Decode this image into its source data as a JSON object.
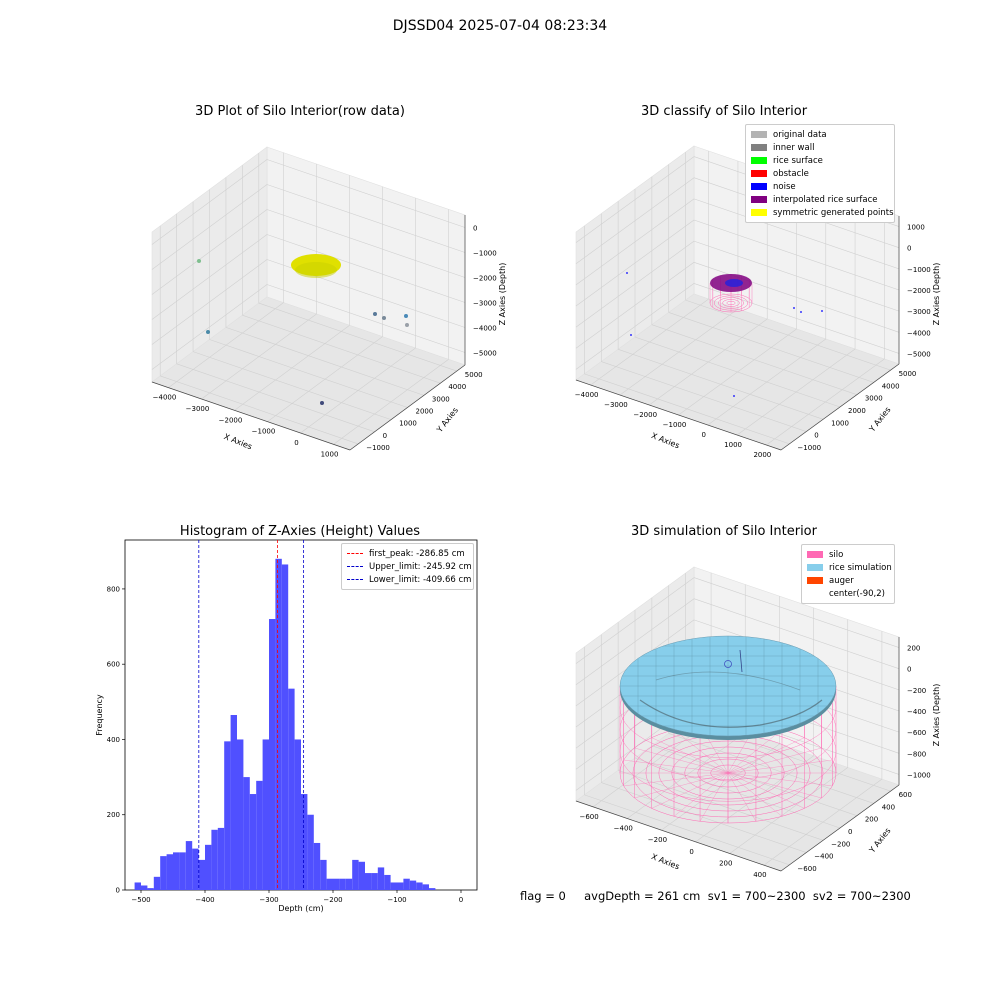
{
  "suptitle": "DJSSD04 2025-07-04 08:23:34",
  "footer": "flag = 0     avgDepth = 261 cm  sv1 = 700~2300  sv2 = 700~2300",
  "colors": {
    "hist_bar": "#5050ff",
    "first_peak": "#ff0000",
    "limits": "#0000cc",
    "silo": "#ff69b4",
    "rice": "#87ceeb",
    "auger": "#ff4500",
    "rice_top_raw": "#e0e000"
  },
  "chart_data": [
    {
      "type": "scatter3d",
      "title": "3D Plot of Silo Interior(row data)",
      "xlabel": "X Axies",
      "ylabel": "Y Axies",
      "zlabel": "Z Axies (Depth)",
      "x_ticks": [
        "−4000",
        "−3000",
        "−2000",
        "−1000",
        "0",
        "1000"
      ],
      "y_ticks": [
        "−1000",
        "0",
        "1000",
        "2000",
        "3000",
        "4000",
        "5000"
      ],
      "z_ticks": [
        "0",
        "−1000",
        "−2000",
        "−3000",
        "−4000",
        "−5000"
      ]
    },
    {
      "type": "scatter3d",
      "title": "3D classify of Silo Interior",
      "xlabel": "X Axies",
      "ylabel": "Y Axies",
      "zlabel": "Z Axies (Depth)",
      "x_ticks": [
        "−4000",
        "−3000",
        "−2000",
        "−1000",
        "0",
        "1000",
        "2000"
      ],
      "y_ticks": [
        "−1000",
        "0",
        "1000",
        "2000",
        "3000",
        "4000",
        "5000"
      ],
      "z_ticks": [
        "1000",
        "0",
        "−1000",
        "−2000",
        "−3000",
        "−4000",
        "−5000"
      ],
      "legend": [
        {
          "label": "original data",
          "color": "#b3b3b3"
        },
        {
          "label": "inner wall",
          "color": "#808080"
        },
        {
          "label": "rice surface",
          "color": "#00ff00"
        },
        {
          "label": "obstacle",
          "color": "#ff0000"
        },
        {
          "label": "noise",
          "color": "#0000ff"
        },
        {
          "label": "interpolated rice surface",
          "color": "#800080"
        },
        {
          "label": "symmetric generated points",
          "color": "#ffff00"
        }
      ]
    },
    {
      "type": "bar",
      "title": "Histogram of Z-Axies (Height) Values",
      "xlabel": "Depth (cm)",
      "ylabel": "Frequency",
      "xlim": [
        -525,
        25
      ],
      "ylim": [
        0,
        930
      ],
      "x_ticks": [
        -500,
        -400,
        -300,
        -200,
        -100,
        0
      ],
      "y_ticks": [
        0,
        200,
        400,
        600,
        800
      ],
      "bin_start": -510,
      "bin_width": 10,
      "values": [
        20,
        12,
        5,
        35,
        90,
        95,
        100,
        100,
        130,
        110,
        80,
        120,
        160,
        165,
        395,
        465,
        400,
        300,
        255,
        290,
        400,
        720,
        880,
        865,
        535,
        400,
        255,
        200,
        125,
        80,
        30,
        30,
        30,
        30,
        80,
        75,
        45,
        45,
        60,
        40,
        20,
        20,
        30,
        25,
        20,
        15,
        5
      ],
      "lines": [
        {
          "label": "first_peak: -286.85 cm",
          "x": -286.85,
          "color": "#ff0000"
        },
        {
          "label": "Upper_limit: -245.92 cm",
          "x": -245.92,
          "color": "#0000cc"
        },
        {
          "label": "Lower_limit: -409.66 cm",
          "x": -409.66,
          "color": "#0000cc"
        }
      ]
    },
    {
      "type": "surface3d",
      "title": "3D simulation of Silo Interior",
      "xlabel": "X Axies",
      "ylabel": "Y Axies",
      "zlabel": "Z Axies (Depth)",
      "x_ticks": [
        "−600",
        "−400",
        "−200",
        "0",
        "200",
        "400"
      ],
      "y_ticks": [
        "−600",
        "−400",
        "−200",
        "0",
        "200",
        "400",
        "600"
      ],
      "z_ticks": [
        "200",
        "0",
        "−200",
        "−400",
        "−600",
        "−800",
        "−1000"
      ],
      "legend": [
        {
          "label": "silo",
          "color": "#ff69b4"
        },
        {
          "label": "rice simulation",
          "color": "#87ceeb"
        },
        {
          "label": "auger",
          "color": "#ff4500"
        },
        {
          "label": "center(-90,2)",
          "color": ""
        }
      ]
    }
  ]
}
